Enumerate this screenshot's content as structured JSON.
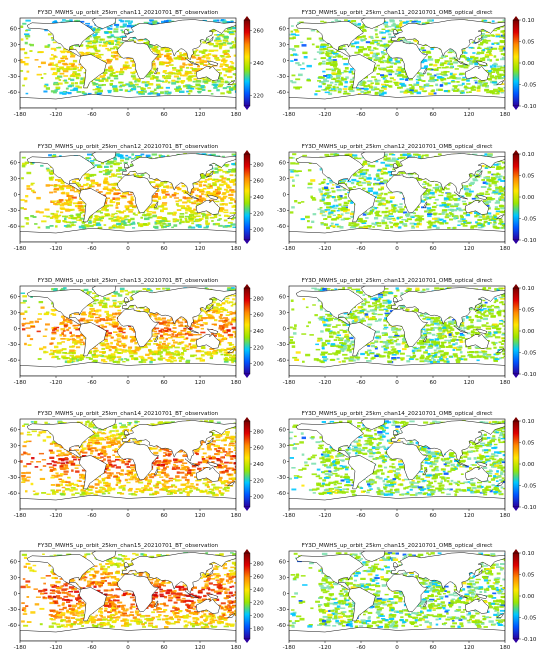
{
  "layout": {
    "rows": 5,
    "cols": 2
  },
  "axes": {
    "x_ticks": [
      "-180",
      "-120",
      "-60",
      "0",
      "60",
      "120",
      "180"
    ],
    "y_ticks": [
      "60",
      "30",
      "0",
      "-30",
      "-60"
    ]
  },
  "colormap": [
    "#2b00a0",
    "#0055ff",
    "#00c8ff",
    "#9be600",
    "#ffe600",
    "#ff8a00",
    "#e00000",
    "#7a0000"
  ],
  "panels": [
    {
      "title": "FY3D_MWHS_up_orbit_25km_chan11_20210701_BT_observation",
      "cbar_ticks": [
        "260",
        "240",
        "220"
      ],
      "mode": "bt",
      "level": 0.5
    },
    {
      "title": "FY3D_MWHS_up_orbit_25km_chan11_20210701_OMB_optical_direct",
      "cbar_ticks": [
        "0.10",
        "0.05",
        "0.00",
        "-0.05",
        "-0.10"
      ],
      "mode": "omb"
    },
    {
      "title": "FY3D_MWHS_up_orbit_25km_chan12_20210701_BT_observation",
      "cbar_ticks": [
        "280",
        "260",
        "240",
        "220",
        "200"
      ],
      "mode": "bt",
      "level": 0.6
    },
    {
      "title": "FY3D_MWHS_up_orbit_25km_chan12_20210701_OMB_optical_direct",
      "cbar_ticks": [
        "0.10",
        "0.05",
        "0.00",
        "-0.05",
        "-0.10"
      ],
      "mode": "omb"
    },
    {
      "title": "FY3D_MWHS_up_orbit_25km_chan13_20210701_BT_observation",
      "cbar_ticks": [
        "280",
        "260",
        "240",
        "220",
        "200"
      ],
      "mode": "bt",
      "level": 0.72
    },
    {
      "title": "FY3D_MWHS_up_orbit_25km_chan13_20210701_OMB_optical_direct",
      "cbar_ticks": [
        "0.10",
        "0.05",
        "0.00",
        "-0.05",
        "-0.10"
      ],
      "mode": "omb"
    },
    {
      "title": "FY3D_MWHS_up_orbit_25km_chan14_20210701_BT_observation",
      "cbar_ticks": [
        "280",
        "260",
        "240",
        "220",
        "200"
      ],
      "mode": "bt",
      "level": 0.8
    },
    {
      "title": "FY3D_MWHS_up_orbit_25km_chan14_20210701_OMB_optical_direct",
      "cbar_ticks": [
        "0.10",
        "0.05",
        "0.00",
        "-0.05",
        "-0.10"
      ],
      "mode": "omb"
    },
    {
      "title": "FY3D_MWHS_up_orbit_25km_chan15_20210701_BT_observation",
      "cbar_ticks": [
        "280",
        "260",
        "240",
        "220",
        "200",
        "180"
      ],
      "mode": "bt",
      "level": 0.85
    },
    {
      "title": "FY3D_MWHS_up_orbit_25km_chan15_20210701_OMB_optical_direct",
      "cbar_ticks": [
        "0.10",
        "0.05",
        "0.00",
        "-0.05",
        "-0.10"
      ],
      "mode": "omb"
    }
  ]
}
